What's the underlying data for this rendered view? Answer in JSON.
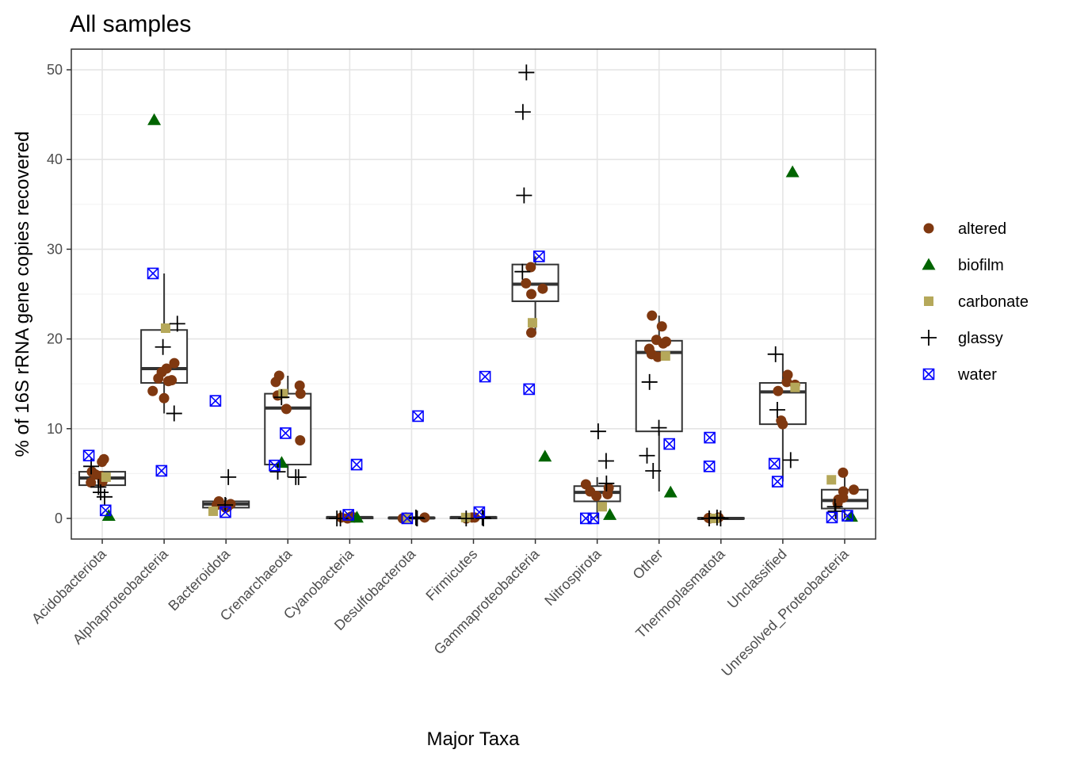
{
  "chart_data": {
    "type": "boxplot",
    "title": "All samples",
    "xlabel": "Major Taxa",
    "ylabel": "% of 16S rRNA gene copies recovered",
    "ylim": [
      -2.3,
      52.3
    ],
    "yticks": [
      0,
      10,
      20,
      30,
      40,
      50
    ],
    "grid": true,
    "legend_position": "right",
    "categories": [
      "Acidobacteriota",
      "Alphaproteobacteria",
      "Bacteroidota",
      "Crenarchaeota",
      "Cyanobacteria",
      "Desulfobacterota",
      "Firmicutes",
      "Gammaproteobacteria",
      "Nitrospirota",
      "Other",
      "Thermoplasmatota",
      "Unclassified",
      "Unresolved_Proteobacteria"
    ],
    "boxes": [
      {
        "q1": 3.7,
        "median": 4.5,
        "q3": 5.2,
        "lower": 3.7,
        "upper": 5.2
      },
      {
        "q1": 15.1,
        "median": 16.7,
        "q3": 21.0,
        "lower": 11.7,
        "upper": 27.3
      },
      {
        "q1": 1.2,
        "median": 1.6,
        "q3": 1.9,
        "lower": 0.8,
        "upper": 2.3
      },
      {
        "q1": 6.0,
        "median": 12.3,
        "q3": 13.9,
        "lower": 4.6,
        "upper": 15.9
      },
      {
        "q1": 0.0,
        "median": 0.1,
        "q3": 0.15,
        "lower": 0.0,
        "upper": 0.2
      },
      {
        "q1": 0.0,
        "median": 0.05,
        "q3": 0.1,
        "lower": 0.0,
        "upper": 0.15
      },
      {
        "q1": 0.0,
        "median": 0.1,
        "q3": 0.15,
        "lower": 0.0,
        "upper": 0.25
      },
      {
        "q1": 24.2,
        "median": 26.1,
        "q3": 28.3,
        "lower": 20.7,
        "upper": 29.2
      },
      {
        "q1": 1.9,
        "median": 2.9,
        "q3": 3.6,
        "lower": 0.0,
        "upper": 4.6
      },
      {
        "q1": 9.7,
        "median": 18.5,
        "q3": 19.8,
        "lower": 3.0,
        "upper": 22.6
      },
      {
        "q1": -0.05,
        "median": 0.0,
        "q3": 0.05,
        "lower": -0.05,
        "upper": 0.05
      },
      {
        "q1": 10.5,
        "median": 14.1,
        "q3": 15.1,
        "lower": 4.1,
        "upper": 18.3
      },
      {
        "q1": 1.1,
        "median": 2.0,
        "q3": 3.2,
        "lower": 0.0,
        "upper": 5.1
      }
    ],
    "series": [
      {
        "name": "altered",
        "color": "#7F3810",
        "shape": "circle",
        "points": [
          [
            0,
            6.3
          ],
          [
            0,
            6.6
          ],
          [
            0,
            5.2
          ],
          [
            0,
            4.9
          ],
          [
            0,
            4.7
          ],
          [
            0,
            4.1
          ],
          [
            0,
            4.0
          ],
          [
            1,
            17.3
          ],
          [
            1,
            16.7
          ],
          [
            1,
            16.3
          ],
          [
            1,
            15.6
          ],
          [
            1,
            15.4
          ],
          [
            1,
            15.3
          ],
          [
            1,
            14.2
          ],
          [
            1,
            13.4
          ],
          [
            2,
            1.9
          ],
          [
            2,
            1.6
          ],
          [
            2,
            1.5
          ],
          [
            2,
            1.3
          ],
          [
            2,
            1.2
          ],
          [
            3,
            15.9
          ],
          [
            3,
            15.2
          ],
          [
            3,
            14.8
          ],
          [
            3,
            13.9
          ],
          [
            3,
            13.7
          ],
          [
            3,
            12.2
          ],
          [
            3,
            8.7
          ],
          [
            4,
            0.1
          ],
          [
            4,
            0.0
          ],
          [
            4,
            0.2
          ],
          [
            4,
            0.1
          ],
          [
            5,
            0.1
          ],
          [
            5,
            0.0
          ],
          [
            5,
            0.1
          ],
          [
            6,
            0.1
          ],
          [
            6,
            0.0
          ],
          [
            6,
            0.1
          ],
          [
            7,
            28.0
          ],
          [
            7,
            26.2
          ],
          [
            7,
            25.6
          ],
          [
            7,
            25.0
          ],
          [
            7,
            20.7
          ],
          [
            8,
            3.8
          ],
          [
            8,
            3.4
          ],
          [
            8,
            3.0
          ],
          [
            8,
            2.7
          ],
          [
            8,
            2.5
          ],
          [
            9,
            22.6
          ],
          [
            9,
            21.4
          ],
          [
            9,
            19.9
          ],
          [
            9,
            19.7
          ],
          [
            9,
            19.5
          ],
          [
            9,
            18.9
          ],
          [
            9,
            18.3
          ],
          [
            9,
            18.0
          ],
          [
            10,
            0.0
          ],
          [
            10,
            0.05
          ],
          [
            10,
            0.1
          ],
          [
            11,
            16.0
          ],
          [
            11,
            15.2
          ],
          [
            11,
            14.9
          ],
          [
            11,
            14.2
          ],
          [
            11,
            10.9
          ],
          [
            11,
            10.5
          ],
          [
            12,
            5.1
          ],
          [
            12,
            3.2
          ],
          [
            12,
            3.0
          ],
          [
            12,
            2.3
          ],
          [
            12,
            2.1
          ],
          [
            12,
            1.7
          ]
        ]
      },
      {
        "name": "biofilm",
        "color": "#006400",
        "shape": "triangle",
        "points": [
          [
            0,
            0.3
          ],
          [
            1,
            44.4
          ],
          [
            3,
            6.2
          ],
          [
            4,
            0.1
          ],
          [
            7,
            6.9
          ],
          [
            8,
            0.4
          ],
          [
            9,
            2.9
          ],
          [
            11,
            38.6
          ],
          [
            12,
            0.2
          ]
        ]
      },
      {
        "name": "carbonate",
        "color": "#B5A85A",
        "shape": "square",
        "points": [
          [
            0,
            4.6
          ],
          [
            1,
            21.2
          ],
          [
            2,
            0.8
          ],
          [
            3,
            13.9
          ],
          [
            5,
            0.05
          ],
          [
            6,
            0.1
          ],
          [
            7,
            21.8
          ],
          [
            8,
            1.3
          ],
          [
            9,
            18.1
          ],
          [
            10,
            0.0
          ],
          [
            11,
            14.6
          ],
          [
            12,
            4.3
          ]
        ]
      },
      {
        "name": "glassy",
        "color": "#000000",
        "shape": "plus",
        "points": [
          [
            0,
            3.5
          ],
          [
            0,
            2.4
          ],
          [
            0,
            2.9
          ],
          [
            0,
            5.8
          ],
          [
            1,
            21.7
          ],
          [
            1,
            19.1
          ],
          [
            1,
            11.7
          ],
          [
            2,
            4.6
          ],
          [
            2,
            1.5
          ],
          [
            3,
            5.2
          ],
          [
            3,
            4.6
          ],
          [
            3,
            4.6
          ],
          [
            3,
            13.5
          ],
          [
            4,
            0.0
          ],
          [
            4,
            0.0
          ],
          [
            5,
            0.0
          ],
          [
            5,
            0.0
          ],
          [
            5,
            0.1
          ],
          [
            6,
            0.0
          ],
          [
            6,
            0.0
          ],
          [
            6,
            0.1
          ],
          [
            7,
            49.7
          ],
          [
            7,
            45.3
          ],
          [
            7,
            36.0
          ],
          [
            7,
            27.5
          ],
          [
            8,
            9.7
          ],
          [
            8,
            6.4
          ],
          [
            8,
            3.9
          ],
          [
            9,
            15.2
          ],
          [
            9,
            10.1
          ],
          [
            9,
            7.0
          ],
          [
            9,
            5.3
          ],
          [
            10,
            0.0
          ],
          [
            10,
            0.0
          ],
          [
            10,
            0.1
          ],
          [
            11,
            18.3
          ],
          [
            11,
            12.1
          ],
          [
            11,
            6.5
          ],
          [
            12,
            1.3
          ],
          [
            12,
            0.8
          ]
        ]
      },
      {
        "name": "water",
        "color": "#0000FF",
        "shape": "boxcross",
        "points": [
          [
            0,
            7.0
          ],
          [
            0,
            0.9
          ],
          [
            1,
            27.3
          ],
          [
            1,
            5.3
          ],
          [
            2,
            13.1
          ],
          [
            2,
            0.7
          ],
          [
            3,
            9.5
          ],
          [
            3,
            5.9
          ],
          [
            4,
            6.0
          ],
          [
            4,
            0.4
          ],
          [
            5,
            11.4
          ],
          [
            5,
            0.0
          ],
          [
            6,
            15.8
          ],
          [
            6,
            0.7
          ],
          [
            7,
            29.2
          ],
          [
            7,
            14.4
          ],
          [
            8,
            0.0
          ],
          [
            8,
            0.0
          ],
          [
            9,
            8.3
          ],
          [
            10,
            9.0
          ],
          [
            10,
            5.8
          ],
          [
            11,
            6.1
          ],
          [
            11,
            4.1
          ],
          [
            12,
            0.1
          ],
          [
            12,
            0.3
          ]
        ]
      }
    ]
  }
}
